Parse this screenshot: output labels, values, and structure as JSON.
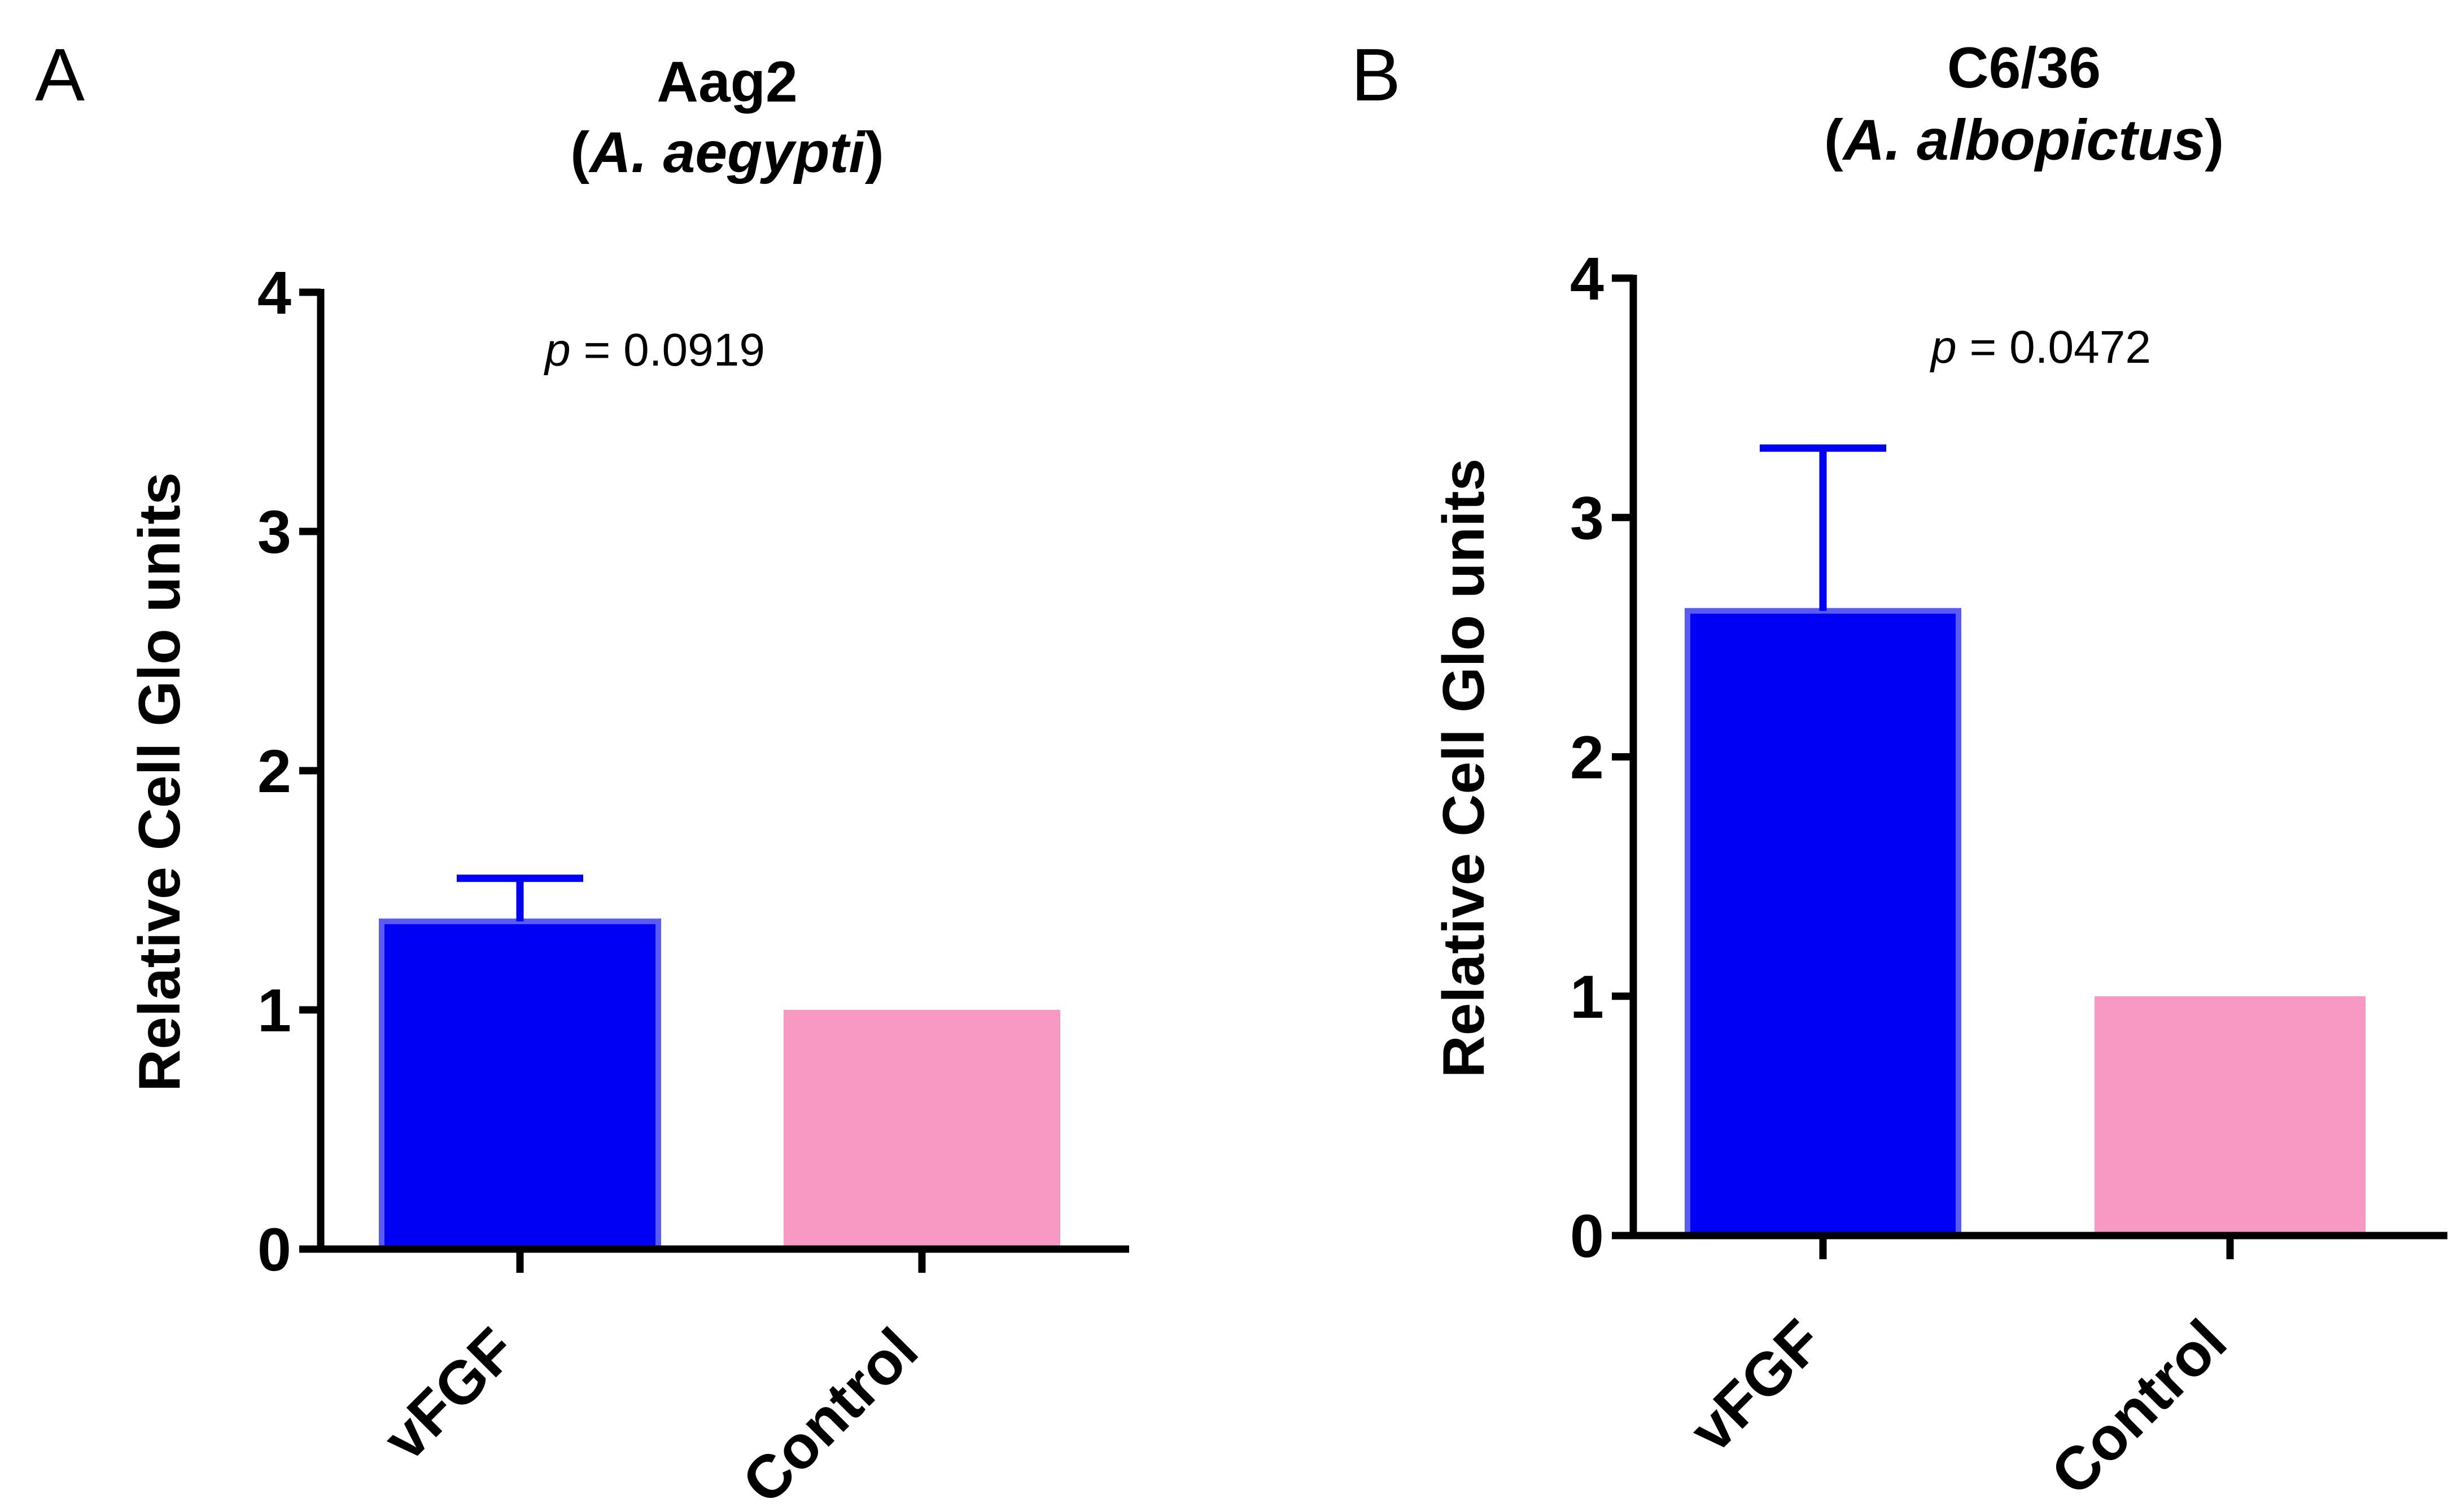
{
  "chart_data": [
    {
      "type": "bar",
      "panel_label": "A",
      "title_line1": "Aag2",
      "title_species": "A. aegypti",
      "categories": [
        "vFGF",
        "Control"
      ],
      "values": [
        1.37,
        1.0
      ],
      "error_upper": [
        1.55,
        null
      ],
      "colors": [
        "#0000f5",
        "#f899c4"
      ],
      "ylabel": "Relative Cell Glo units",
      "ylim": [
        0,
        4
      ],
      "yticks": [
        0,
        1,
        2,
        3,
        4
      ],
      "annotation_p": "p",
      "annotation_value": "= 0.0919"
    },
    {
      "type": "bar",
      "panel_label": "B",
      "title_line1": "C6/36",
      "title_species": "A. albopictus",
      "categories": [
        "vFGF",
        "Control"
      ],
      "values": [
        2.61,
        1.0
      ],
      "error_upper": [
        3.29,
        null
      ],
      "colors": [
        "#0000f5",
        "#f899c4"
      ],
      "ylabel": "Relative Cell Glo units",
      "ylim": [
        0,
        4
      ],
      "yticks": [
        0,
        1,
        2,
        3,
        4
      ],
      "annotation_p": "p",
      "annotation_value": "= 0.0472"
    }
  ]
}
